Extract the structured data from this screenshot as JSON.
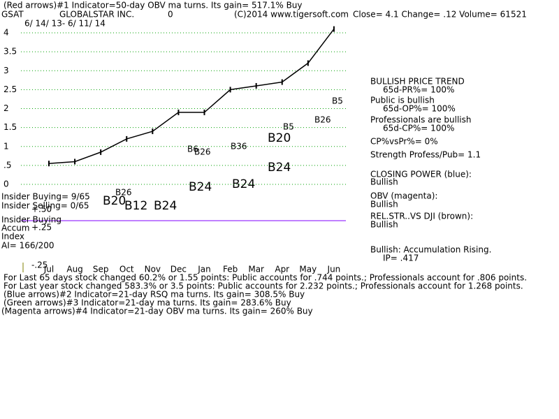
{
  "chart_data": {
    "type": "line",
    "header": [
      "(Red arrows)#1 Indicator=50-day OBV ma turns. Its gain= 517.1% Buy",
      "GSAT",
      "GLOBALSTAR INC.",
      "0",
      "(C)2014 www.tigersoft.com",
      "Close=  4.1  Change= .12 Volume= 61521",
      "6/ 14/ 13- 6/ 11/ 14"
    ],
    "categories": [
      "Jul",
      "Aug",
      "Sep",
      "Oct",
      "Nov",
      "Dec",
      "Jan",
      "Feb",
      "Mar",
      "Apr",
      "May",
      "Jun"
    ],
    "series": [
      {
        "name": "GSAT",
        "color": "#000000",
        "values": [
          0.55,
          0.6,
          0.85,
          1.2,
          1.4,
          1.9,
          1.9,
          2.5,
          2.6,
          2.7,
          3.2,
          4.1
        ]
      }
    ],
    "ylim": [
      0,
      4
    ],
    "yticks": [
      0,
      {
        "value": 0.5,
        "label": ".5"
      },
      1,
      1.5,
      2,
      2.5,
      3,
      3.5,
      4
    ],
    "grid": true,
    "annotations": [
      "B5",
      "B5",
      "B26",
      "B6",
      "B26",
      "B36",
      "B20",
      "B24",
      "B26",
      "B20",
      "B12",
      "B24",
      "B24",
      "B24"
    ],
    "side_panel": [
      "BULLISH PRICE TREND",
      "65d-PR%= 100%",
      "Public is bullish",
      "65d-OP%= 100%",
      "Professionals are bullish",
      "65d-CP%= 100%",
      "CP%vsPr%=  0%",
      "Strength Profess/Pub= 1.1",
      "CLOSING POWER (blue):",
      "Bullish",
      "OBV (magenta):",
      "Bullish",
      "REL.STR..VS DJI (brown):",
      "Bullish",
      "Bullish: Accumulation Rising.",
      "IP=  .417"
    ],
    "left_panel": [
      "Insider Buying= 9/65",
      "Insider Selling= 0/65",
      "Insider Buying",
      "Accum",
      "Index",
      "AI= 166/200",
      "+.50",
      "+.25",
      "-.25"
    ],
    "footer": [
      "For Last 65 days stock changed  60.2% or  1.55 points:  Public accounts for  .744 points.;  Professionals account for  .806 points.",
      "For Last year stock changed  583.3% or  3.5 points:  Public accounts for  2.232 points.;  Professionals account for  1.268 points.",
      "(Blue arrows)#2 Indicator=21-day RSQ ma turns. Its gain= 308.5% Buy",
      "(Green arrows)#3 Indicator=21-day ma turns. Its gain= 283.6% Buy",
      "(Magenta arrows)#4 Indicator=21-day OBV ma turns. Its gain= 260% Buy"
    ]
  }
}
